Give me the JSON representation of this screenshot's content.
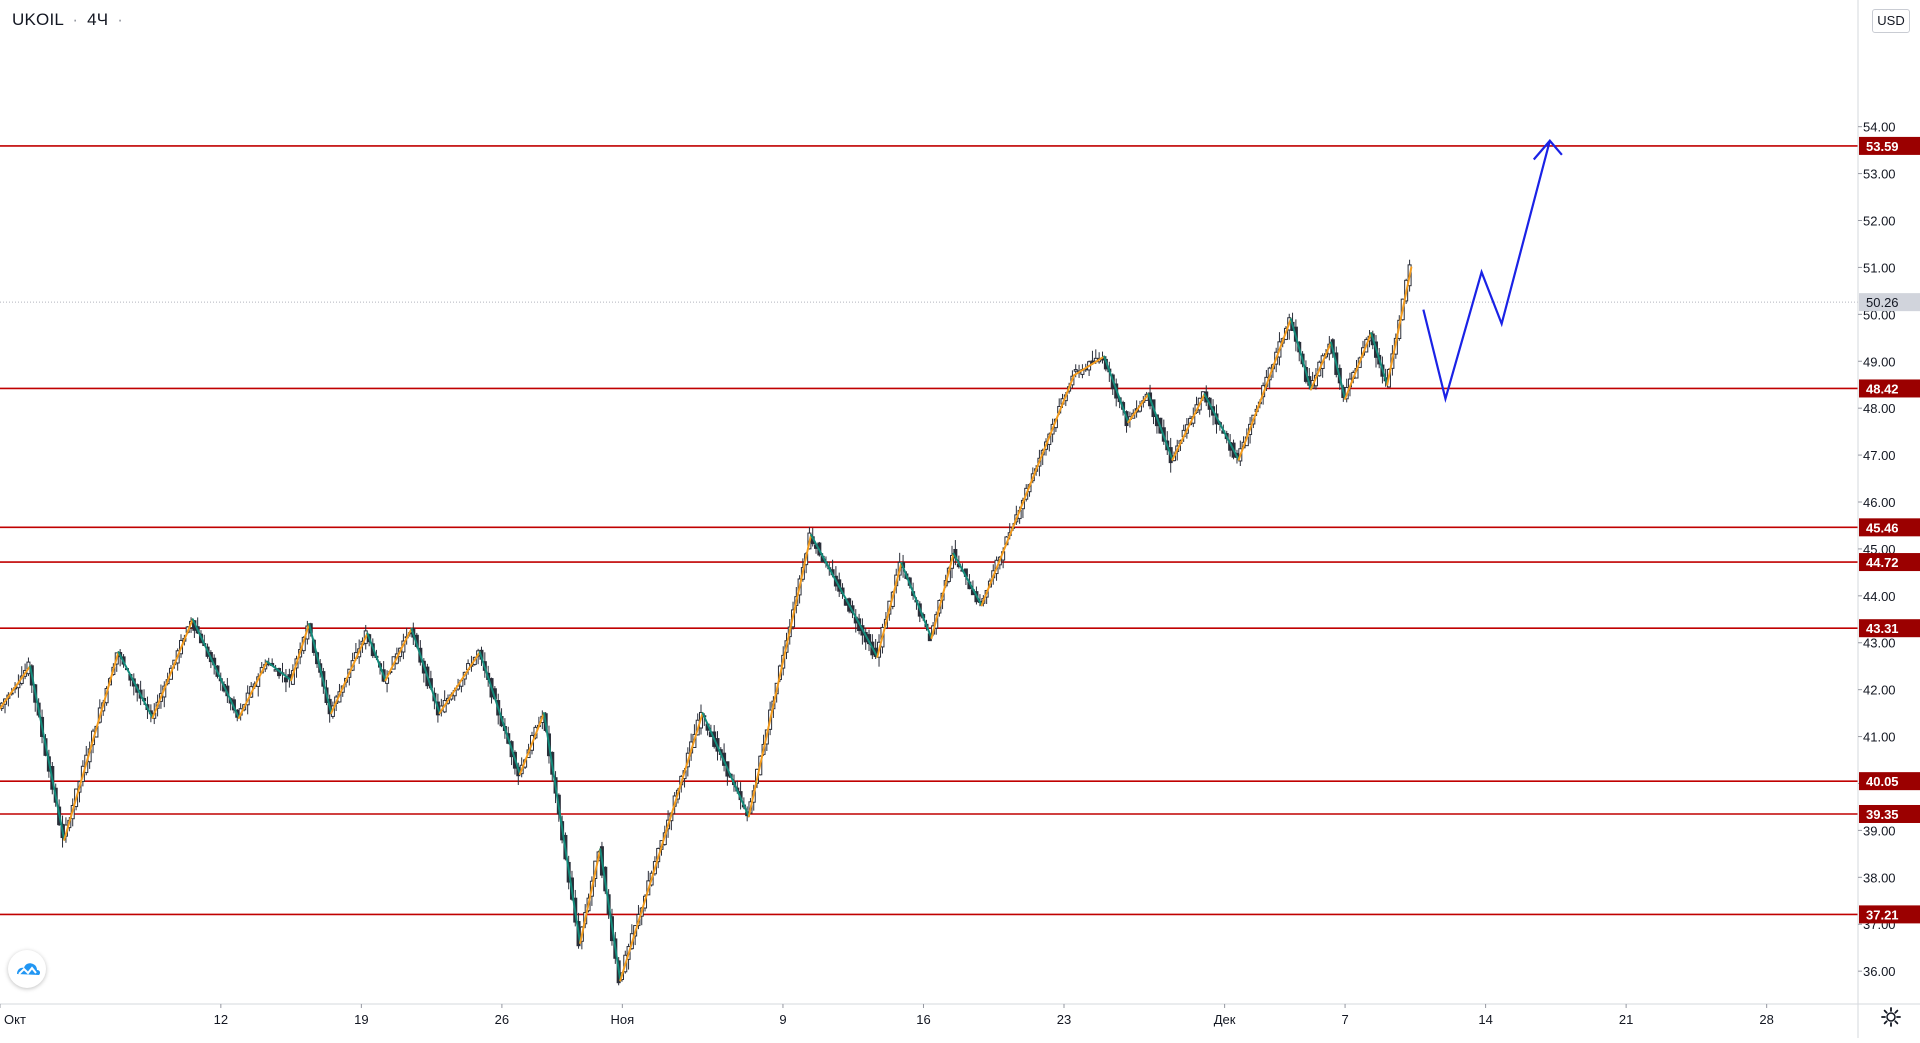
{
  "header": {
    "symbol": "UKOIL",
    "interval": "4Ч",
    "currency": "USD"
  },
  "colors": {
    "level_line": "#c00000",
    "level_label_bg": "#9b0000",
    "up_leg": "#f39c1e",
    "down_leg": "#138a7a",
    "forecast": "#1a22e6",
    "candle": "#2a2e39",
    "axis_text": "#131722",
    "grid_sep": "#d6d8de"
  },
  "icons": {
    "logo": "tradingview-cloud-icon",
    "settings": "gear-icon"
  },
  "chart_data": {
    "type": "candlestick",
    "instrument": "UKOIL",
    "interval": "4Ч",
    "currency": "USD",
    "ylim": [
      35.3,
      56.7
    ],
    "y_ticks": [
      "54.00",
      "53.00",
      "52.00",
      "51.00",
      "50.00",
      "49.00",
      "48.00",
      "47.00",
      "46.00",
      "45.00",
      "44.00",
      "43.00",
      "42.00",
      "41.00",
      "40.00",
      "39.00",
      "38.00",
      "37.00",
      "36.00"
    ],
    "y_tick_values": [
      54,
      53,
      52,
      51,
      50,
      49,
      48,
      47,
      46,
      45,
      44,
      43,
      42,
      41,
      40,
      39,
      38,
      37,
      36
    ],
    "x_ticks": [
      {
        "label": "Окт",
        "day": 1
      },
      {
        "label": "12",
        "day": 12
      },
      {
        "label": "19",
        "day": 19
      },
      {
        "label": "26",
        "day": 26
      },
      {
        "label": "Ноя",
        "day": 32
      },
      {
        "label": "9",
        "day": 40
      },
      {
        "label": "16",
        "day": 47
      },
      {
        "label": "23",
        "day": 54
      },
      {
        "label": "Дек",
        "day": 62
      },
      {
        "label": "7",
        "day": 68
      },
      {
        "label": "14",
        "day": 75
      },
      {
        "label": "21",
        "day": 82
      },
      {
        "label": "28",
        "day": 89
      }
    ],
    "xlim": [
      1,
      93.5
    ],
    "last_price": "50.26",
    "last_price_value": 50.26,
    "levels": [
      {
        "label": "53.59",
        "value": 53.59
      },
      {
        "label": "48.42",
        "value": 48.42
      },
      {
        "label": "45.46",
        "value": 45.46
      },
      {
        "label": "44.72",
        "value": 44.72
      },
      {
        "label": "43.31",
        "value": 43.31
      },
      {
        "label": "40.05",
        "value": 40.05
      },
      {
        "label": "39.35",
        "value": 39.35
      },
      {
        "label": "37.21",
        "value": 37.21
      }
    ],
    "zigzag": [
      [
        1.0,
        41.6
      ],
      [
        2.5,
        42.5
      ],
      [
        4.2,
        38.8
      ],
      [
        6.9,
        42.8
      ],
      [
        8.6,
        41.4
      ],
      [
        10.6,
        43.5
      ],
      [
        12.9,
        41.4
      ],
      [
        14.3,
        42.6
      ],
      [
        15.5,
        42.2
      ],
      [
        16.4,
        43.4
      ],
      [
        17.5,
        41.5
      ],
      [
        19.3,
        43.2
      ],
      [
        20.2,
        42.2
      ],
      [
        21.5,
        43.3
      ],
      [
        22.9,
        41.5
      ],
      [
        24.9,
        42.8
      ],
      [
        26.9,
        40.2
      ],
      [
        28.1,
        41.5
      ],
      [
        29.9,
        36.6
      ],
      [
        30.9,
        38.6
      ],
      [
        31.9,
        35.8
      ],
      [
        36.0,
        41.5
      ],
      [
        38.3,
        39.3
      ],
      [
        41.4,
        45.3
      ],
      [
        44.7,
        42.7
      ],
      [
        45.9,
        44.7
      ],
      [
        47.4,
        43.1
      ],
      [
        48.5,
        44.9
      ],
      [
        49.9,
        43.8
      ],
      [
        54.5,
        48.7
      ],
      [
        56.0,
        49.1
      ],
      [
        57.2,
        47.7
      ],
      [
        58.2,
        48.3
      ],
      [
        59.4,
        46.9
      ],
      [
        61.0,
        48.3
      ],
      [
        62.7,
        46.9
      ],
      [
        65.3,
        49.9
      ],
      [
        66.3,
        48.4
      ],
      [
        67.3,
        49.4
      ],
      [
        68.0,
        48.2
      ],
      [
        69.3,
        49.6
      ],
      [
        70.1,
        48.5
      ],
      [
        71.3,
        51.0
      ]
    ],
    "forecast": [
      [
        71.9,
        50.1
      ],
      [
        73.0,
        48.2
      ],
      [
        74.8,
        50.9
      ],
      [
        75.8,
        49.8
      ],
      [
        78.2,
        53.7
      ]
    ],
    "forecast_arrowhead": [
      [
        77.4,
        53.3
      ],
      [
        78.2,
        53.7
      ],
      [
        78.8,
        53.4
      ]
    ]
  }
}
